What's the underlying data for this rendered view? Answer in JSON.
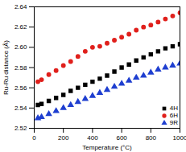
{
  "chart_data": {
    "type": "scatter",
    "x_label": "Temperature (°C)",
    "y_label": "Ru-Ru distance (Å)",
    "x": [
      25,
      50,
      100,
      150,
      200,
      250,
      300,
      350,
      400,
      450,
      500,
      550,
      600,
      650,
      700,
      750,
      800,
      850,
      900,
      950,
      1000
    ],
    "series": [
      {
        "name": "4H",
        "color": "#000000",
        "marker": "square",
        "values": [
          2.543,
          2.544,
          2.547,
          2.55,
          2.553,
          2.557,
          2.56,
          2.563,
          2.566,
          2.569,
          2.572,
          2.576,
          2.58,
          2.583,
          2.587,
          2.59,
          2.593,
          2.596,
          2.599,
          2.601,
          2.603
        ]
      },
      {
        "name": "6H",
        "color": "#e0201c",
        "marker": "circle",
        "values": [
          2.566,
          2.568,
          2.573,
          2.577,
          2.582,
          2.586,
          2.591,
          2.596,
          2.6,
          2.601,
          2.604,
          2.607,
          2.61,
          2.613,
          2.617,
          2.62,
          2.622,
          2.625,
          2.628,
          2.631,
          2.634
        ]
      },
      {
        "name": "9R",
        "color": "#1f3fd0",
        "marker": "triangle",
        "values": [
          2.53,
          2.531,
          2.534,
          2.537,
          2.54,
          2.543,
          2.546,
          2.549,
          2.552,
          2.555,
          2.558,
          2.561,
          2.564,
          2.567,
          2.57,
          2.572,
          2.575,
          2.578,
          2.58,
          2.582,
          2.584
        ]
      }
    ],
    "xlim": [
      0,
      1000
    ],
    "xticks": [
      0,
      200,
      400,
      600,
      800,
      1000
    ],
    "ylim": [
      2.52,
      2.64
    ],
    "yticks": [
      2.52,
      2.54,
      2.56,
      2.58,
      2.6,
      2.62,
      2.64
    ],
    "legend": "bottom-right",
    "grid": false
  }
}
